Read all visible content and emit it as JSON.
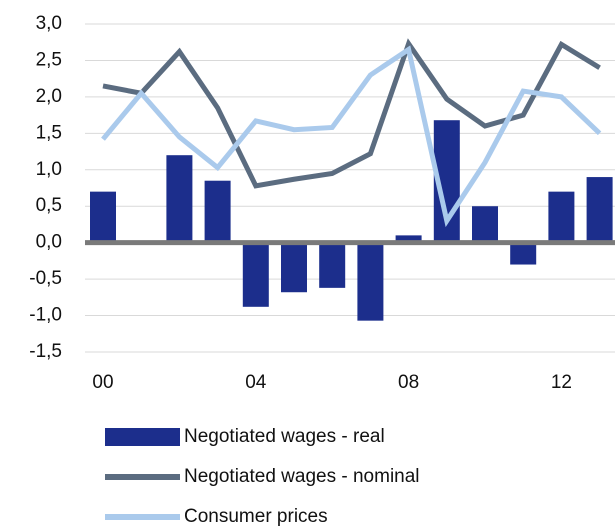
{
  "chart_data": {
    "type": "bar",
    "categories": [
      "00",
      null,
      null,
      null,
      "04",
      null,
      null,
      null,
      "08",
      null,
      null,
      null,
      "12",
      null
    ],
    "series": [
      {
        "name": "Negotiated wages - real",
        "type": "bar",
        "color": "#1c2e8c",
        "values": [
          0.7,
          0,
          1.2,
          0.85,
          -0.88,
          -0.68,
          -0.62,
          -1.07,
          0.1,
          1.68,
          0.5,
          -0.3,
          0.7,
          0.9
        ]
      },
      {
        "name": "Negotiated wages - nominal",
        "type": "line",
        "color": "#5b6c80",
        "values": [
          2.15,
          2.05,
          2.62,
          1.85,
          0.78,
          0.87,
          0.95,
          1.22,
          2.73,
          1.97,
          1.6,
          1.75,
          2.72,
          2.4
        ]
      },
      {
        "name": "Consumer prices",
        "type": "line",
        "color": "#aacaec",
        "values": [
          1.42,
          2.05,
          1.45,
          1.03,
          1.67,
          1.55,
          1.58,
          2.3,
          2.65,
          0.3,
          1.1,
          2.08,
          2.0,
          1.5
        ]
      }
    ],
    "ylim": [
      -1.5,
      3.0
    ],
    "yticks": [
      {
        "value": -1.5,
        "label": "-1,5"
      },
      {
        "value": -1.0,
        "label": "-1,0"
      },
      {
        "value": -0.5,
        "label": "-0,5"
      },
      {
        "value": 0,
        "label": "0,0"
      },
      {
        "value": 0.5,
        "label": "0,5"
      },
      {
        "value": 1.0,
        "label": "1,0"
      },
      {
        "value": 1.5,
        "label": "1,5"
      },
      {
        "value": 2.0,
        "label": "2,0"
      },
      {
        "value": 2.5,
        "label": "2,5"
      },
      {
        "value": 3.0,
        "label": "3,0"
      }
    ],
    "grid": true
  }
}
